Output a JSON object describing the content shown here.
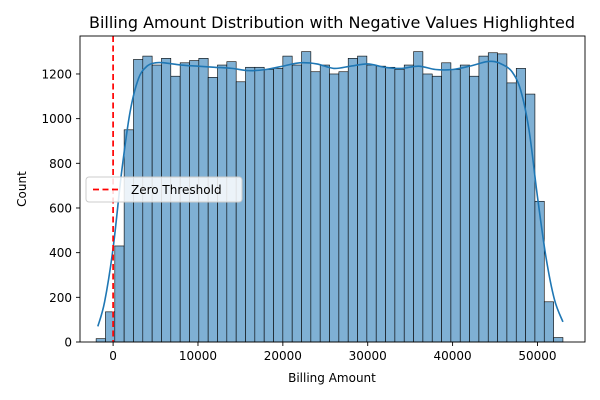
{
  "chart_data": {
    "type": "bar",
    "title": "Billing Amount Distribution with Negative Values Highlighted",
    "xlabel": "Billing Amount",
    "ylabel": "Count",
    "xlim": [
      -3900,
      55600
    ],
    "ylim": [
      0,
      1370
    ],
    "x_ticks": [
      0,
      10000,
      20000,
      30000,
      40000,
      50000
    ],
    "x_tick_labels": [
      "0",
      "10000",
      "20000",
      "30000",
      "40000",
      "50000"
    ],
    "y_ticks": [
      0,
      200,
      400,
      600,
      800,
      1000,
      1200
    ],
    "y_tick_labels": [
      "0",
      "200",
      "400",
      "600",
      "800",
      "1000",
      "1200"
    ],
    "bin_start": -2000,
    "bin_width": 1100,
    "counts": [
      15,
      135,
      430,
      950,
      1265,
      1280,
      1240,
      1270,
      1190,
      1250,
      1260,
      1270,
      1185,
      1240,
      1255,
      1165,
      1230,
      1230,
      1220,
      1225,
      1280,
      1240,
      1300,
      1210,
      1240,
      1200,
      1210,
      1270,
      1280,
      1240,
      1235,
      1230,
      1220,
      1240,
      1300,
      1200,
      1190,
      1250,
      1220,
      1240,
      1190,
      1280,
      1295,
      1290,
      1160,
      1225,
      1110,
      630,
      180,
      20
    ],
    "kde": {
      "x": [
        -1800,
        -1000,
        0,
        1000,
        2000,
        3000,
        4000,
        5000,
        6000,
        8000,
        10000,
        12000,
        14000,
        16000,
        18000,
        20000,
        22000,
        24000,
        26000,
        28000,
        30000,
        32000,
        34000,
        36000,
        38000,
        40000,
        42000,
        44000,
        45000,
        46000,
        47000,
        48000,
        49000,
        50000,
        51000,
        52000,
        53000
      ],
      "y": [
        70,
        180,
        420,
        760,
        1030,
        1180,
        1235,
        1250,
        1250,
        1240,
        1235,
        1230,
        1225,
        1215,
        1220,
        1235,
        1250,
        1245,
        1225,
        1235,
        1245,
        1230,
        1225,
        1235,
        1220,
        1220,
        1235,
        1255,
        1255,
        1240,
        1210,
        1130,
        950,
        650,
        380,
        190,
        90
      ]
    },
    "zero_line": {
      "x": 0,
      "color": "#ff0000"
    },
    "legend": {
      "entries": [
        "Zero Threshold"
      ],
      "location": "center-left"
    },
    "bar_fill": "#7fb0d4",
    "kde_color": "#1f77b4",
    "grid": false
  }
}
